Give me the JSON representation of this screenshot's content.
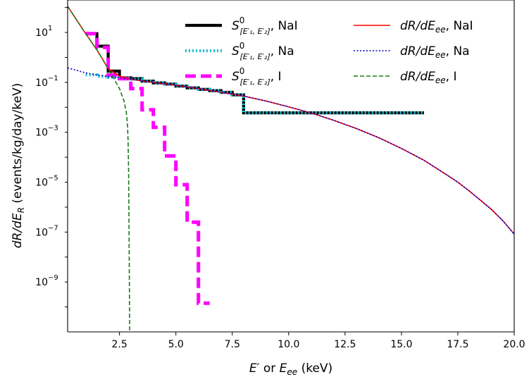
{
  "chart_data": {
    "type": "line",
    "xlabel_parts": [
      "E",
      "′ or E",
      "ee",
      " (keV)"
    ],
    "ylabel_parts": [
      "dR/dE",
      "R",
      " (events/kg/day/keV)"
    ],
    "xlim": [
      0.2,
      20.0
    ],
    "ylim_log10": [
      -11,
      2.3
    ],
    "y_scale": "log",
    "grid": false,
    "legend_position": "top-right",
    "x_ticks": [
      "2.5",
      "5.0",
      "7.5",
      "10.0",
      "12.5",
      "15.0",
      "17.5",
      "20.0"
    ],
    "y_ticks": [
      {
        "base": "10",
        "exp": "1"
      },
      {
        "base": "10",
        "exp": "−1"
      },
      {
        "base": "10",
        "exp": "−3"
      },
      {
        "base": "10",
        "exp": "−5"
      },
      {
        "base": "10",
        "exp": "−7"
      },
      {
        "base": "10",
        "exp": "−9"
      }
    ],
    "legend": [
      {
        "label_main": "S",
        "label_sup": "0",
        "label_sub": "[E′₁, E′₂]",
        "label_tail": ", NaI"
      },
      {
        "label_main": "S",
        "label_sup": "0",
        "label_sub": "[E′₁, E′₂]",
        "label_tail": ", Na"
      },
      {
        "label_main": "S",
        "label_sup": "0",
        "label_sub": "[E′₁, E′₂]",
        "label_tail": ", I"
      },
      {
        "label_main": "dR/dE",
        "label_sub": "ee",
        "label_tail": ", NaI"
      },
      {
        "label_main": "dR/dE",
        "label_sub": "ee",
        "label_tail": ", Na"
      },
      {
        "label_main": "dR/dE",
        "label_sub": "ee",
        "label_tail": ", I"
      }
    ],
    "series": [
      {
        "id": "step_nai",
        "kind": "step",
        "color": "#000000",
        "style": "solid",
        "edges": [
          1.0,
          1.5,
          2.0,
          2.5,
          3.0,
          3.5,
          4.0,
          4.5,
          5.0,
          5.5,
          6.0,
          6.5,
          7.0,
          7.5,
          8.0,
          16.0
        ],
        "log10_values": [
          0.95,
          0.45,
          -0.55,
          -0.82,
          -0.85,
          -0.95,
          -1.02,
          -1.07,
          -1.15,
          -1.22,
          -1.28,
          -1.33,
          -1.4,
          -1.5,
          -2.22
        ]
      },
      {
        "id": "step_na",
        "kind": "step",
        "color": "#17becf",
        "style": "dotted",
        "edges": [
          1.0,
          1.5,
          2.0,
          2.5,
          3.0,
          3.5,
          4.0,
          4.5,
          5.0,
          5.5,
          6.0,
          6.5,
          7.0,
          7.5,
          8.0,
          16.0
        ],
        "log10_values": [
          -0.7,
          -0.76,
          -0.8,
          -0.83,
          -0.87,
          -0.95,
          -1.02,
          -1.07,
          -1.15,
          -1.22,
          -1.28,
          -1.33,
          -1.4,
          -1.5,
          -2.22
        ]
      },
      {
        "id": "step_i",
        "kind": "step",
        "color": "#ff00ff",
        "style": "dashed",
        "edges": [
          1.0,
          1.5,
          2.0,
          2.5,
          3.0,
          3.5,
          4.0,
          4.5,
          5.0,
          5.5,
          6.0,
          6.5
        ],
        "log10_values": [
          0.95,
          0.4,
          -0.7,
          -0.85,
          -1.25,
          -2.1,
          -2.8,
          -3.95,
          -5.1,
          -6.6,
          -9.85
        ]
      },
      {
        "id": "curve_nai",
        "kind": "line",
        "color": "#ff0000",
        "style": "solid",
        "x": [
          0.2,
          0.6,
          1.0,
          1.5,
          2.0,
          2.5,
          3.0,
          4.0,
          5.0,
          6.0,
          7.0,
          8.0,
          9.0,
          10.0,
          11.0,
          12.0,
          13.0,
          14.0,
          15.0,
          16.0,
          17.0,
          17.5,
          18.0,
          18.5,
          19.0,
          19.5,
          20.0
        ],
        "log10_y": [
          2.05,
          1.5,
          0.95,
          0.3,
          -0.45,
          -0.75,
          -0.88,
          -1.0,
          -1.12,
          -1.25,
          -1.4,
          -1.55,
          -1.75,
          -1.98,
          -2.23,
          -2.52,
          -2.85,
          -3.22,
          -3.65,
          -4.12,
          -4.7,
          -5.0,
          -5.35,
          -5.72,
          -6.1,
          -6.55,
          -7.08
        ]
      },
      {
        "id": "curve_na",
        "kind": "line",
        "color": "#0000cc",
        "style": "dotted",
        "x": [
          0.2,
          0.6,
          1.0,
          1.5,
          2.0,
          2.5,
          3.0,
          4.0,
          5.0,
          6.0,
          7.0,
          8.0,
          9.0,
          10.0,
          11.0,
          12.0,
          13.0,
          14.0,
          15.0,
          16.0,
          17.0,
          17.5,
          18.0,
          18.5,
          19.0,
          19.5,
          20.0
        ],
        "log10_y": [
          -0.42,
          -0.52,
          -0.62,
          -0.7,
          -0.77,
          -0.82,
          -0.87,
          -1.0,
          -1.12,
          -1.25,
          -1.4,
          -1.55,
          -1.75,
          -1.98,
          -2.23,
          -2.52,
          -2.85,
          -3.22,
          -3.65,
          -4.12,
          -4.7,
          -5.0,
          -5.35,
          -5.72,
          -6.1,
          -6.55,
          -7.08
        ]
      },
      {
        "id": "curve_i",
        "kind": "line",
        "color": "#1a7a1a",
        "style": "dashed",
        "x": [
          0.2,
          0.6,
          1.0,
          1.5,
          2.0,
          2.5,
          2.7,
          2.8,
          2.85,
          2.88,
          2.9,
          2.92,
          2.95
        ],
        "log10_y": [
          2.05,
          1.5,
          0.95,
          0.3,
          -0.45,
          -1.25,
          -1.75,
          -2.2,
          -2.65,
          -3.3,
          -4.4,
          -6.5,
          -11.0
        ]
      }
    ]
  }
}
